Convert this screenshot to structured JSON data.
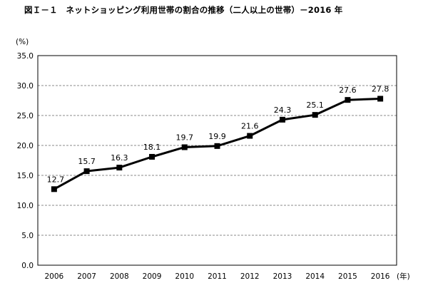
{
  "chart_data": {
    "type": "line",
    "title": "図Ｉ－１　ネットショッピング利用世帯の割合の推移（二人以上の世帯）－2016 年",
    "y_unit_label": "(%)",
    "x_unit_label": "(年)",
    "x": [
      "2006",
      "2007",
      "2008",
      "2009",
      "2010",
      "2011",
      "2012",
      "2013",
      "2014",
      "2015",
      "2016"
    ],
    "series": [
      {
        "values": [
          12.7,
          15.7,
          16.3,
          18.1,
          19.7,
          19.9,
          21.6,
          24.3,
          25.1,
          27.6,
          27.8
        ]
      }
    ],
    "y_ticks": [
      "0.0",
      "5.0",
      "10.0",
      "15.0",
      "20.0",
      "25.0",
      "30.0",
      "35.0"
    ],
    "ylim": [
      0,
      35
    ],
    "grid": "horizontal dashed",
    "colors": {
      "line": "#000000",
      "grid": "#666666",
      "axis": "#000000"
    }
  }
}
